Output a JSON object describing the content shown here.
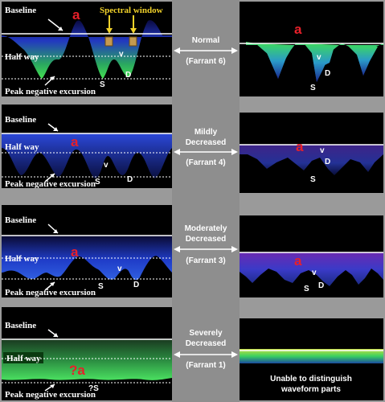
{
  "labels": {
    "baseline": "Baseline",
    "halfway": "Half way",
    "peak": "Peak negative excursion",
    "a": "a",
    "v": "v",
    "s": "S",
    "d": "D",
    "qa": "?a",
    "qs": "?S",
    "spectral_window": "Spectral window"
  },
  "rows": [
    {
      "grade": "Normal",
      "farrant": "(Farrant 6)"
    },
    {
      "grade": "Mildly Decreased",
      "farrant": "(Farrant 4)"
    },
    {
      "grade": "Moderately Decreased",
      "farrant": "(Farrant 3)"
    },
    {
      "grade": "Severely Decreased",
      "farrant": "(Farrant 1)"
    }
  ],
  "grade_lines": {
    "r0": [
      "Normal"
    ],
    "r1": [
      "Mildly",
      "Decreased"
    ],
    "r2": [
      "Moderately",
      "Decreased"
    ],
    "r3": [
      "Severely",
      "Decreased"
    ]
  },
  "unable_note": [
    "Unable to distinguish",
    "waveform parts"
  ],
  "colors": {
    "baseline": "#ffffff",
    "blue": "#2a3fd8",
    "green": "#3dd65a",
    "red": "#e8202a",
    "arrow": "#f2d22a"
  }
}
